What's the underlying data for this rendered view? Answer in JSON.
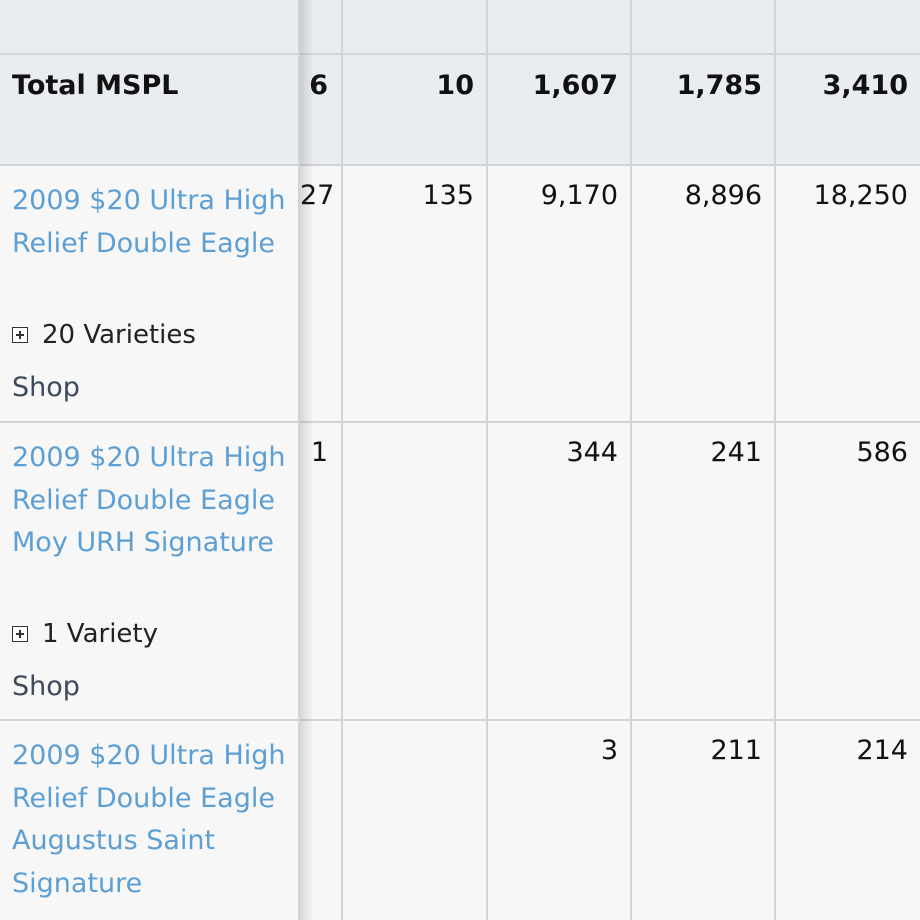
{
  "total": {
    "label": "Total MSPL",
    "values": [
      "6",
      "10",
      "1,607",
      "1,785",
      "3,410"
    ]
  },
  "rows": [
    {
      "name": "2009 $20 Ultra High Relief Double Eagle",
      "varieties": "20 Varieties",
      "shop": "Shop",
      "values": [
        "27",
        "135",
        "9,170",
        "8,896",
        "18,250"
      ]
    },
    {
      "name": "2009 $20 Ultra High Relief Double Eagle Moy URH Signature",
      "varieties": "1 Variety",
      "shop": "Shop",
      "values": [
        "1",
        "",
        "344",
        "241",
        "586"
      ]
    },
    {
      "name": "2009 $20 Ultra High Relief Double Eagle Augustus Saint Signature",
      "values": [
        "",
        "",
        "3",
        "211",
        "214"
      ]
    }
  ],
  "colors": {
    "link": "#5d9fd3",
    "header_bg": "#e9ecf0",
    "border": "#d2d4d7"
  },
  "icons": {
    "expand": "plus-square-icon"
  }
}
